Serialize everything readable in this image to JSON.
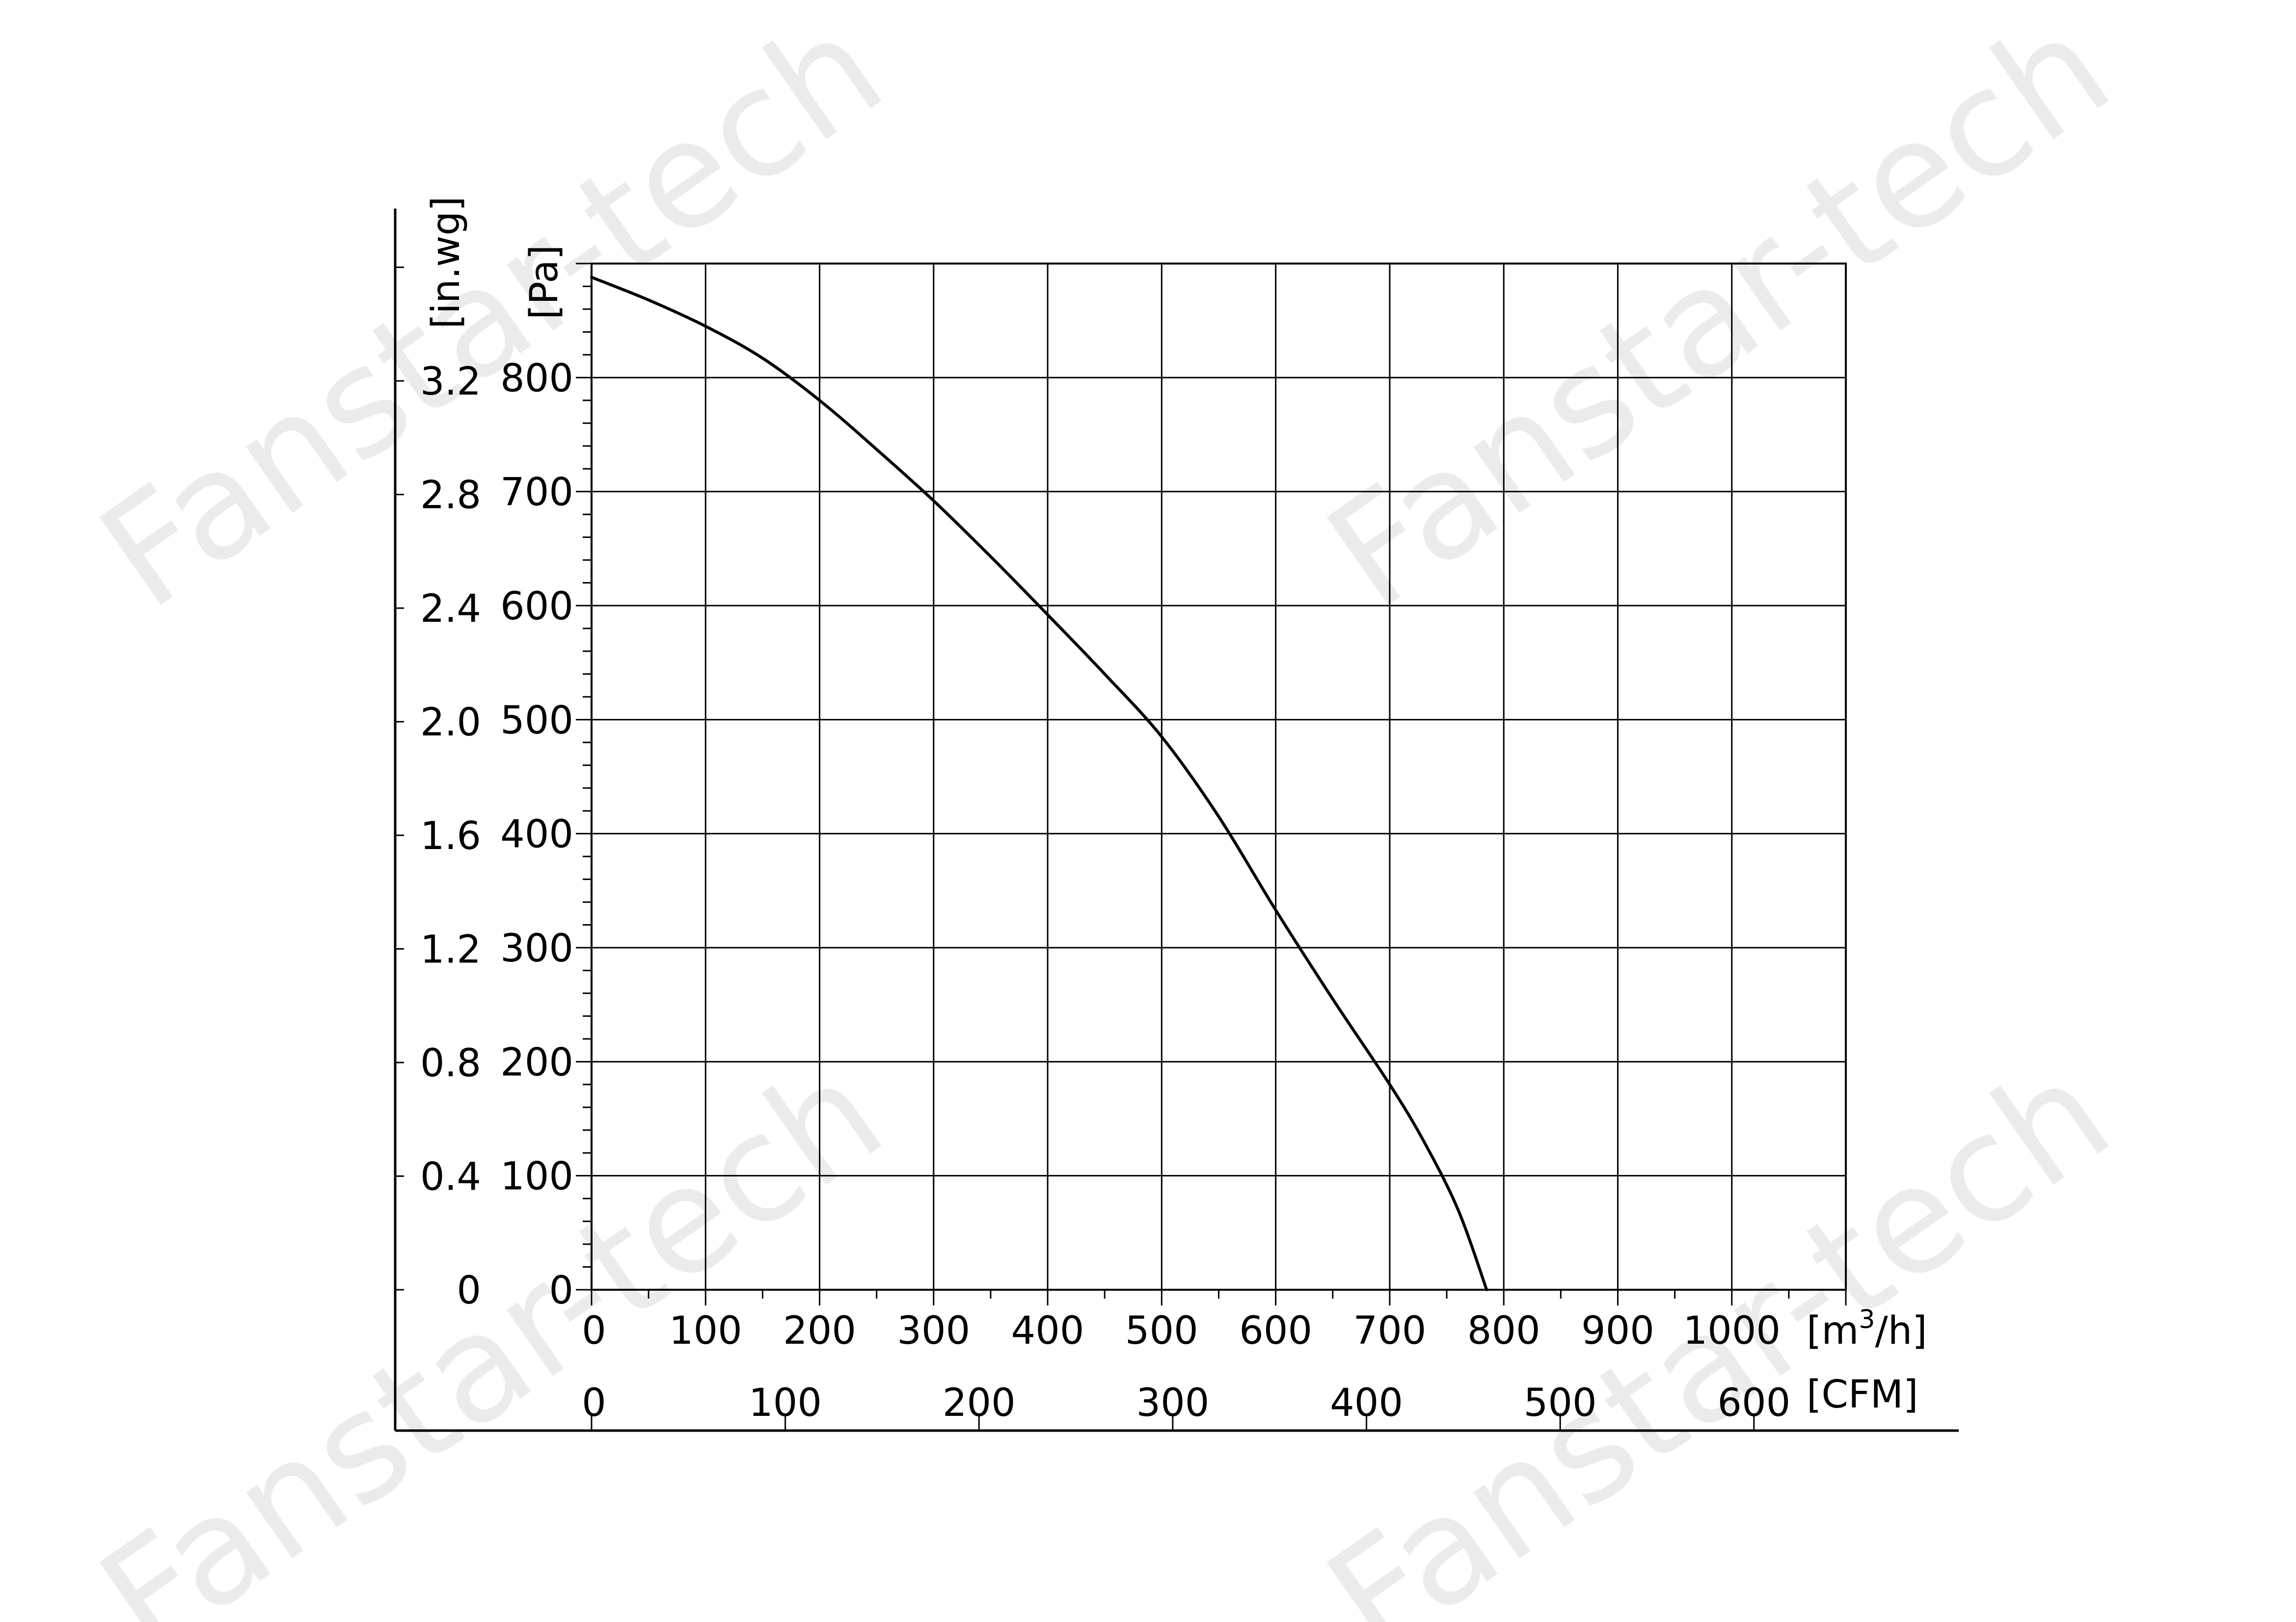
{
  "watermark": {
    "text": "Fanstar-tech"
  },
  "chart_data": {
    "type": "line",
    "title": "",
    "x_primary": {
      "unit_label": "[m³/h]",
      "unit_base": "[m",
      "unit_sup": "3",
      "unit_tail": "/h]",
      "range": [
        0,
        1100
      ],
      "ticks": [
        0,
        100,
        200,
        300,
        400,
        500,
        600,
        700,
        800,
        900,
        1000
      ],
      "tick_labels": [
        "0",
        "100",
        "200",
        "300",
        "400",
        "500",
        "600",
        "700",
        "800",
        "900",
        "1000"
      ]
    },
    "x_secondary": {
      "unit_label": "[CFM]",
      "ticks": [
        0,
        100,
        200,
        300,
        400,
        500,
        600
      ],
      "tick_labels": [
        "0",
        "100",
        "200",
        "300",
        "400",
        "500",
        "600"
      ]
    },
    "y_primary": {
      "unit_label": "[Pa]",
      "range": [
        0,
        900
      ],
      "ticks": [
        0,
        100,
        200,
        300,
        400,
        500,
        600,
        700,
        800
      ],
      "tick_labels": [
        "0",
        "100",
        "200",
        "300",
        "400",
        "500",
        "600",
        "700",
        "800"
      ]
    },
    "y_secondary": {
      "unit_label": "[in.wg]",
      "ticks": [
        0,
        0.4,
        0.8,
        1.2,
        1.6,
        2.0,
        2.4,
        2.8,
        3.2
      ],
      "tick_labels": [
        "0",
        "0.4",
        "0.8",
        "1.2",
        "1.6",
        "2.0",
        "2.4",
        "2.8",
        "3.2"
      ]
    },
    "grid": true,
    "legend": "none",
    "series": [
      {
        "x": [
          0,
          50,
          100,
          150,
          200,
          250,
          300,
          350,
          400,
          450,
          500,
          550,
          600,
          650,
          700,
          730,
          760,
          785
        ],
        "y": [
          888,
          868,
          845,
          817,
          780,
          737,
          692,
          643,
          592,
          540,
          485,
          415,
          333,
          255,
          180,
          130,
          70,
          0
        ]
      }
    ]
  }
}
